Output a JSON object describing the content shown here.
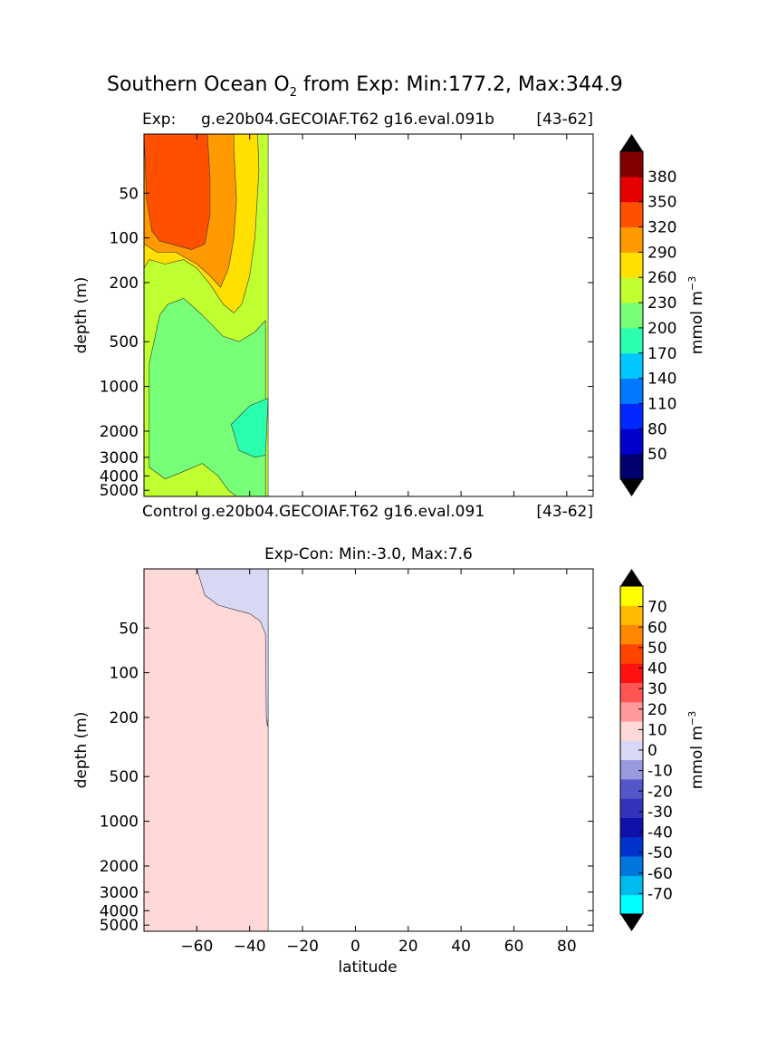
{
  "figure": {
    "suptitle_prefix": "Southern Ocean O",
    "suptitle_sub": "2",
    "suptitle_suffix": " from Exp: Min:177.2, Max:344.9"
  },
  "chart_data": [
    {
      "type": "contour",
      "label_left": "Exp:",
      "label_center": "g.e20b04.GECOIAF.T62 g16.eval.091b",
      "label_right": "[43-62]",
      "bottom_left": "Control",
      "bottom_center": "g.e20b04.GECOIAF.T62 g16.eval.091",
      "bottom_right": "[43-62]",
      "ylabel": "depth (m)",
      "yticks": [
        "50",
        "100",
        "200",
        "500",
        "1000",
        "2000",
        "3000",
        "4000",
        "5000"
      ],
      "ytick_values": [
        50,
        100,
        200,
        500,
        1000,
        2000,
        3000,
        4000,
        5000
      ],
      "xlim": [
        -80,
        90
      ],
      "colorbar": {
        "label": "mmol m",
        "label_sup": "−3",
        "levels": [
          20,
          50,
          80,
          110,
          140,
          170,
          200,
          230,
          260,
          290,
          320,
          350,
          380,
          410
        ],
        "labels": [
          "50",
          "80",
          "110",
          "140",
          "170",
          "200",
          "230",
          "260",
          "290",
          "320",
          "350",
          "380"
        ],
        "colors": [
          "#00006e",
          "#0000cc",
          "#0028ff",
          "#0078ff",
          "#00c8ff",
          "#2affb0",
          "#78ff78",
          "#c0ff30",
          "#ffe000",
          "#ff9900",
          "#ff5000",
          "#e60000",
          "#820000"
        ],
        "extend_low": "#000000",
        "extend_high": "#000000"
      },
      "bands": [
        {
          "name": "band-230",
          "color": "#c0ff30",
          "points": [
            [
              -80,
              20
            ],
            [
              -33,
              20
            ],
            [
              -33,
              5500
            ],
            [
              -80,
              5500
            ]
          ]
        },
        {
          "name": "band-200",
          "color": "#78ff78",
          "points": [
            [
              -76,
              480
            ],
            [
              -74,
              330
            ],
            [
              -71,
              280
            ],
            [
              -65,
              255
            ],
            [
              -58,
              330
            ],
            [
              -50,
              460
            ],
            [
              -44,
              500
            ],
            [
              -38,
              430
            ],
            [
              -34,
              360
            ],
            [
              -34,
              5500
            ],
            [
              -45,
              5500
            ],
            [
              -48,
              5000
            ],
            [
              -52,
              4000
            ],
            [
              -58,
              3300
            ],
            [
              -66,
              3800
            ],
            [
              -72,
              4200
            ],
            [
              -78,
              3500
            ],
            [
              -78,
              700
            ]
          ]
        },
        {
          "name": "band-170",
          "color": "#2affb0",
          "points": [
            [
              -33,
              1200
            ],
            [
              -40,
              1350
            ],
            [
              -47,
              1800
            ],
            [
              -44,
              2700
            ],
            [
              -38,
              3000
            ],
            [
              -34,
              2900
            ]
          ]
        },
        {
          "name": "band-260",
          "color": "#ffe000",
          "points": [
            [
              -80,
              160
            ],
            [
              -78,
              140
            ],
            [
              -72,
              150
            ],
            [
              -65,
              140
            ],
            [
              -60,
              160
            ],
            [
              -55,
              205
            ],
            [
              -50,
              280
            ],
            [
              -46,
              320
            ],
            [
              -43,
              280
            ],
            [
              -40,
              180
            ],
            [
              -38,
              100
            ],
            [
              -36.5,
              35
            ],
            [
              -37,
              20
            ],
            [
              -80,
              20
            ]
          ]
        },
        {
          "name": "band-290",
          "color": "#ff9900",
          "points": [
            [
              -80,
              110
            ],
            [
              -75,
              125
            ],
            [
              -68,
              125
            ],
            [
              -60,
              150
            ],
            [
              -55,
              180
            ],
            [
              -51,
              215
            ],
            [
              -48,
              160
            ],
            [
              -46,
              100
            ],
            [
              -45,
              55
            ],
            [
              -46,
              25
            ],
            [
              -46,
              20
            ],
            [
              -80,
              20
            ]
          ]
        },
        {
          "name": "band-320",
          "color": "#ff5000",
          "points": [
            [
              -80,
              20
            ],
            [
              -79,
              55
            ],
            [
              -77,
              90
            ],
            [
              -74,
              105
            ],
            [
              -68,
              112
            ],
            [
              -62,
              120
            ],
            [
              -57,
              110
            ],
            [
              -55,
              70
            ],
            [
              -55,
              40
            ],
            [
              -56,
              20
            ]
          ]
        }
      ]
    },
    {
      "type": "contour",
      "title": "Exp-Con: Min:-3.0, Max:7.6",
      "ylabel": "depth (m)",
      "xlabel": "latitude",
      "yticks": [
        "50",
        "100",
        "200",
        "500",
        "1000",
        "2000",
        "3000",
        "4000",
        "5000"
      ],
      "ytick_values": [
        50,
        100,
        200,
        500,
        1000,
        2000,
        3000,
        4000,
        5000
      ],
      "xticks": [
        "−60",
        "−40",
        "−20",
        "0",
        "20",
        "40",
        "60",
        "80"
      ],
      "xtick_values": [
        -60,
        -40,
        -20,
        0,
        20,
        40,
        60,
        80
      ],
      "xlim": [
        -80,
        90
      ],
      "colorbar": {
        "label": "mmol m",
        "label_sup": "−3",
        "levels": [
          -80,
          -70,
          -60,
          -50,
          -40,
          -30,
          -20,
          -10,
          0,
          10,
          20,
          30,
          40,
          50,
          60,
          70,
          80
        ],
        "labels": [
          "-70",
          "-60",
          "-50",
          "-40",
          "-30",
          "-20",
          "-10",
          "0",
          "10",
          "20",
          "30",
          "40",
          "50",
          "60",
          "70"
        ],
        "colors": [
          "#00ffff",
          "#00bbee",
          "#0077dd",
          "#0033cc",
          "#1010aa",
          "#3333bb",
          "#5555cc",
          "#9999dd",
          "#d8d8f4",
          "#ffd8d8",
          "#ff9999",
          "#ff5555",
          "#ff1111",
          "#ff4400",
          "#ff8800",
          "#ffbb00",
          "#ffff00"
        ],
        "extend_low": "#000000",
        "extend_high": "#000000"
      },
      "bands": [
        {
          "name": "band-0-10",
          "color": "#ffd8d8",
          "points": [
            [
              -80,
              20
            ],
            [
              -33,
              20
            ],
            [
              -33,
              5500
            ],
            [
              -80,
              5500
            ]
          ]
        },
        {
          "name": "band-minus10-0",
          "color": "#d8d8f4",
          "points": [
            [
              -60,
              20
            ],
            [
              -57,
              30
            ],
            [
              -52,
              35
            ],
            [
              -45,
              38
            ],
            [
              -40,
              40
            ],
            [
              -36,
              45
            ],
            [
              -34,
              55
            ],
            [
              -33.7,
              200
            ],
            [
              -33.3,
              230
            ],
            [
              -33,
              200
            ],
            [
              -33,
              20
            ]
          ]
        }
      ]
    }
  ]
}
